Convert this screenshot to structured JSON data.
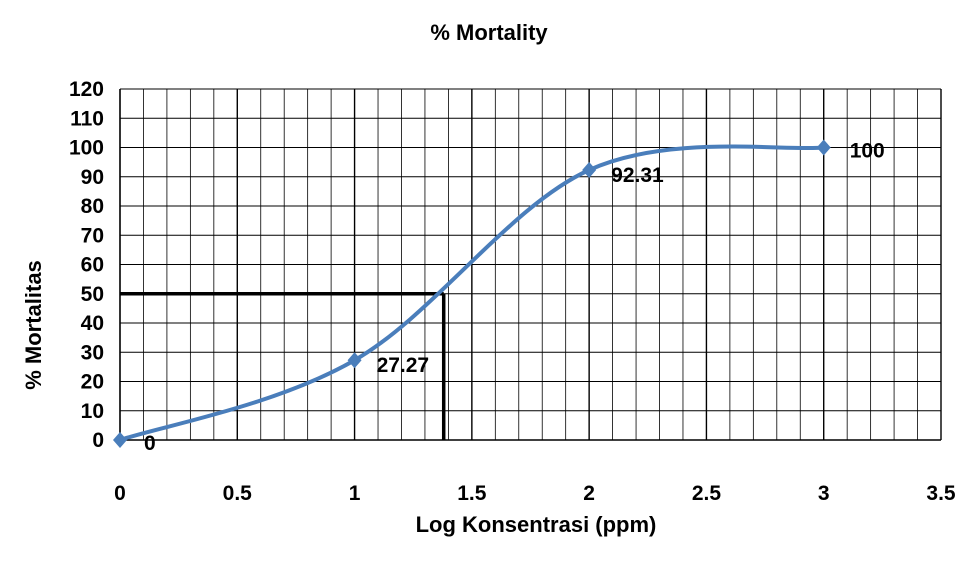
{
  "chart_data": {
    "type": "line",
    "title": "% Mortality",
    "xlabel": "Log Konsentrasi (ppm)",
    "ylabel": "% Mortalitas",
    "xlim": [
      0,
      3.5
    ],
    "ylim": [
      0,
      120
    ],
    "x_ticks": [
      "0",
      "0.5",
      "1",
      "1.5",
      "2",
      "2.5",
      "3",
      "3.5"
    ],
    "y_ticks": [
      "0",
      "10",
      "20",
      "30",
      "40",
      "50",
      "60",
      "70",
      "80",
      "90",
      "100",
      "110",
      "120"
    ],
    "grid": true,
    "series": [
      {
        "x": [
          0,
          1,
          2,
          3
        ],
        "values": [
          0,
          27.27,
          92.31,
          100
        ],
        "data_labels": [
          "0",
          "27.27",
          "92.31",
          "100"
        ],
        "smooth": true
      }
    ],
    "reference_lines": [
      {
        "x": 1.38,
        "y": 50
      }
    ],
    "colors": {
      "series": "#4a7ebb",
      "reference": "#000000",
      "grid": "#000000"
    }
  }
}
